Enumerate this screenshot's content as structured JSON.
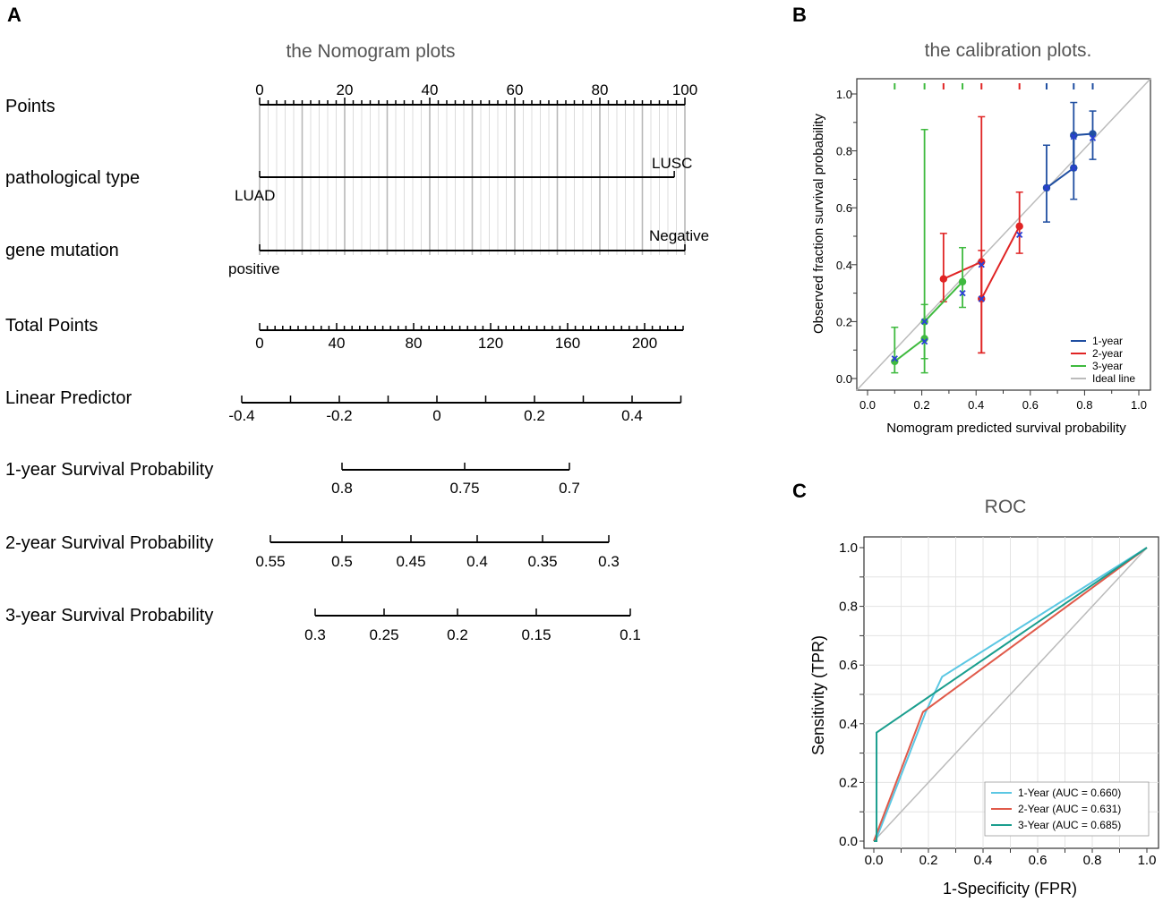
{
  "panels": {
    "a": "A",
    "b": "B",
    "c": "C"
  },
  "chart_data": [
    {
      "type": "nomogram",
      "title": "the Nomogram plots",
      "rows": [
        {
          "label": "Points",
          "ticks": [
            "0",
            "20",
            "40",
            "60",
            "80",
            "100"
          ]
        },
        {
          "label": "pathological type",
          "levels": [
            "LUAD",
            "LUSC"
          ]
        },
        {
          "label": "gene mutation",
          "levels": [
            "positive",
            "Negative"
          ]
        },
        {
          "label": "Total Points",
          "ticks": [
            "0",
            "40",
            "80",
            "120",
            "160",
            "200"
          ]
        },
        {
          "label": "Linear Predictor",
          "ticks": [
            "-0.4",
            "-0.2",
            "0",
            "0.2",
            "0.4"
          ]
        },
        {
          "label": "1-year Survival Probability",
          "ticks": [
            "0.8",
            "0.75",
            "0.7"
          ]
        },
        {
          "label": "2-year Survival Probability",
          "ticks": [
            "0.55",
            "0.5",
            "0.45",
            "0.4",
            "0.35",
            "0.3"
          ]
        },
        {
          "label": "3-year Survival Probability",
          "ticks": [
            "0.3",
            "0.25",
            "0.2",
            "0.15",
            "0.1"
          ]
        }
      ]
    },
    {
      "type": "scatter",
      "title": "the calibration plots.",
      "xlabel": "Nomogram predicted survival probability",
      "ylabel": "Observed fraction survival probability",
      "xlim": [
        0,
        1
      ],
      "ylim": [
        0,
        1
      ],
      "ticks": [
        "0.0",
        "0.2",
        "0.4",
        "0.6",
        "0.8",
        "1.0"
      ],
      "series": [
        {
          "name": "1-year",
          "color": "#1f4ea1",
          "points": [
            {
              "x": 0.66,
              "y": 0.67,
              "lo": 0.55,
              "hi": 0.82
            },
            {
              "x": 0.76,
              "y": 0.74,
              "lo": 0.63,
              "hi": 0.85
            },
            {
              "x": 0.76,
              "y": 0.855,
              "lo": 0.74,
              "hi": 0.97
            },
            {
              "x": 0.83,
              "y": 0.86,
              "lo": 0.77,
              "hi": 0.94
            }
          ],
          "marks": [
            0.66,
            0.76,
            0.83
          ]
        },
        {
          "name": "2-year",
          "color": "#e02424",
          "points": [
            {
              "x": 0.28,
              "y": 0.35,
              "lo": 0.27,
              "hi": 0.51
            },
            {
              "x": 0.42,
              "y": 0.41,
              "lo": 0.09,
              "hi": 0.92
            },
            {
              "x": 0.42,
              "y": 0.28,
              "lo": 0.09,
              "hi": 0.45
            },
            {
              "x": 0.56,
              "y": 0.535,
              "lo": 0.44,
              "hi": 0.655
            }
          ],
          "marks": [
            0.28,
            0.42,
            0.56
          ]
        },
        {
          "name": "3-year",
          "color": "#3fba3f",
          "points": [
            {
              "x": 0.1,
              "y": 0.06,
              "lo": 0.02,
              "hi": 0.18
            },
            {
              "x": 0.21,
              "y": 0.14,
              "lo": 0.02,
              "hi": 0.26
            },
            {
              "x": 0.21,
              "y": 0.2,
              "lo": 0.07,
              "hi": 0.875
            },
            {
              "x": 0.35,
              "y": 0.34,
              "lo": 0.25,
              "hi": 0.46
            }
          ],
          "marks": [
            0.1,
            0.21,
            0.35
          ]
        }
      ],
      "crosses": [
        {
          "x": 0.1,
          "y": 0.07
        },
        {
          "x": 0.21,
          "y": 0.2
        },
        {
          "x": 0.21,
          "y": 0.13
        },
        {
          "x": 0.35,
          "y": 0.3
        },
        {
          "x": 0.42,
          "y": 0.4
        },
        {
          "x": 0.42,
          "y": 0.28
        },
        {
          "x": 0.56,
          "y": 0.505
        },
        {
          "x": 0.66,
          "y": 0.67
        },
        {
          "x": 0.76,
          "y": 0.74
        },
        {
          "x": 0.76,
          "y": 0.85
        },
        {
          "x": 0.83,
          "y": 0.845
        }
      ],
      "ideal": {
        "name": "Ideal line",
        "color": "#bbbbbb"
      },
      "legend_position": "bottom-right"
    },
    {
      "type": "line",
      "title": "ROC",
      "xlabel": "1-Specificity (FPR)",
      "ylabel": "Sensitivity (TPR)",
      "xlim": [
        0,
        1
      ],
      "ylim": [
        0,
        1
      ],
      "ticks": [
        "0.0",
        "0.2",
        "0.4",
        "0.6",
        "0.8",
        "1.0"
      ],
      "series": [
        {
          "name": "1-Year (AUC = 0.660)",
          "color": "#5bc7e3",
          "x": [
            0,
            0.01,
            0.01,
            0.19,
            0.24,
            0.25,
            1
          ],
          "y": [
            0,
            0.01,
            0.01,
            0.44,
            0.54,
            0.56,
            1
          ]
        },
        {
          "name": "2-Year (AUC = 0.631)",
          "color": "#e05a4a",
          "x": [
            0,
            0.18,
            1
          ],
          "y": [
            0,
            0.44,
            1
          ]
        },
        {
          "name": "3-Year (AUC = 0.685)",
          "color": "#1a9e8e",
          "x": [
            0,
            0.01,
            0.01,
            1
          ],
          "y": [
            0,
            0,
            0.37,
            1
          ]
        }
      ],
      "diagonal_color": "#bbbbbb",
      "legend_position": "bottom-right"
    }
  ]
}
